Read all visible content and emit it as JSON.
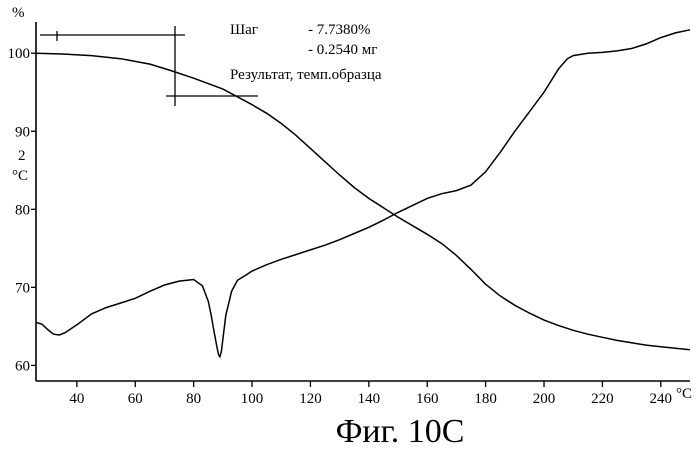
{
  "chart_data": {
    "type": "line",
    "title": "",
    "caption": "Фиг. 10С",
    "y_unit_top": "%",
    "y_unit_secondary_number": "2",
    "y_unit_secondary": "°C",
    "x_unit": "°C",
    "xlim": [
      26,
      250
    ],
    "ylim": [
      58,
      104
    ],
    "x_ticks": [
      40,
      60,
      80,
      100,
      120,
      140,
      160,
      180,
      200,
      220,
      240
    ],
    "x_tick_labels": [
      "40",
      "60",
      "80",
      "100",
      "120",
      "140",
      "160",
      "180",
      "200",
      "220",
      "240"
    ],
    "y_ticks": [
      100,
      90,
      80,
      70,
      60
    ],
    "y_tick_labels": [
      "100",
      "90",
      "80",
      "70",
      "60"
    ],
    "grid": false,
    "annotation": {
      "line1_label": "Шаг",
      "line1_value": "- 7.7380%",
      "line2_value": "- 0.2540 мг",
      "line3": "Результат, темп.образца"
    },
    "series": [
      {
        "style": "solid",
        "x": [
          26,
          35,
          45,
          55,
          65,
          72,
          80,
          90,
          100,
          105,
          110,
          115,
          120,
          125,
          130,
          135,
          140,
          145,
          150,
          155,
          160,
          165,
          170,
          175,
          180,
          185,
          190,
          195,
          200,
          205,
          210,
          215,
          220,
          225,
          230,
          235,
          240,
          245,
          250
        ],
        "y": [
          100.0,
          99.9,
          99.7,
          99.3,
          98.6,
          97.8,
          96.8,
          95.4,
          93.4,
          92.3,
          91.0,
          89.5,
          87.8,
          86.1,
          84.4,
          82.8,
          81.4,
          80.2,
          79.0,
          77.9,
          76.8,
          75.6,
          74.1,
          72.3,
          70.4,
          68.9,
          67.7,
          66.7,
          65.8,
          65.1,
          64.5,
          64.0,
          63.6,
          63.2,
          62.9,
          62.6,
          62.4,
          62.2,
          62.0
        ]
      },
      {
        "style": "solid",
        "x": [
          26,
          28,
          30,
          32,
          34,
          36,
          40,
          45,
          50,
          55,
          60,
          65,
          70,
          75,
          80,
          83,
          85,
          86,
          87,
          88,
          88.5,
          89,
          89.5,
          90,
          91,
          93,
          95,
          98,
          100,
          105,
          110,
          115,
          120,
          125,
          130,
          135,
          140,
          145,
          150,
          155,
          160,
          165,
          170,
          175,
          180,
          185,
          190,
          195,
          200,
          205,
          208,
          210,
          215,
          220,
          225,
          230,
          235,
          240,
          245,
          250
        ],
        "y": [
          65.5,
          65.3,
          64.6,
          64.0,
          63.9,
          64.2,
          65.2,
          66.6,
          67.4,
          68.0,
          68.6,
          69.5,
          70.3,
          70.8,
          71.0,
          70.2,
          68.2,
          66.4,
          64.3,
          62.3,
          61.4,
          61.1,
          61.8,
          63.4,
          66.4,
          69.5,
          70.9,
          71.6,
          72.1,
          72.9,
          73.6,
          74.2,
          74.8,
          75.4,
          76.1,
          76.9,
          77.7,
          78.6,
          79.6,
          80.5,
          81.4,
          82.0,
          82.4,
          83.1,
          84.8,
          87.3,
          90.0,
          92.5,
          95.0,
          98.0,
          99.3,
          99.7,
          100.0,
          100.1,
          100.3,
          100.6,
          101.2,
          102.0,
          102.6,
          103.0
        ]
      }
    ]
  }
}
